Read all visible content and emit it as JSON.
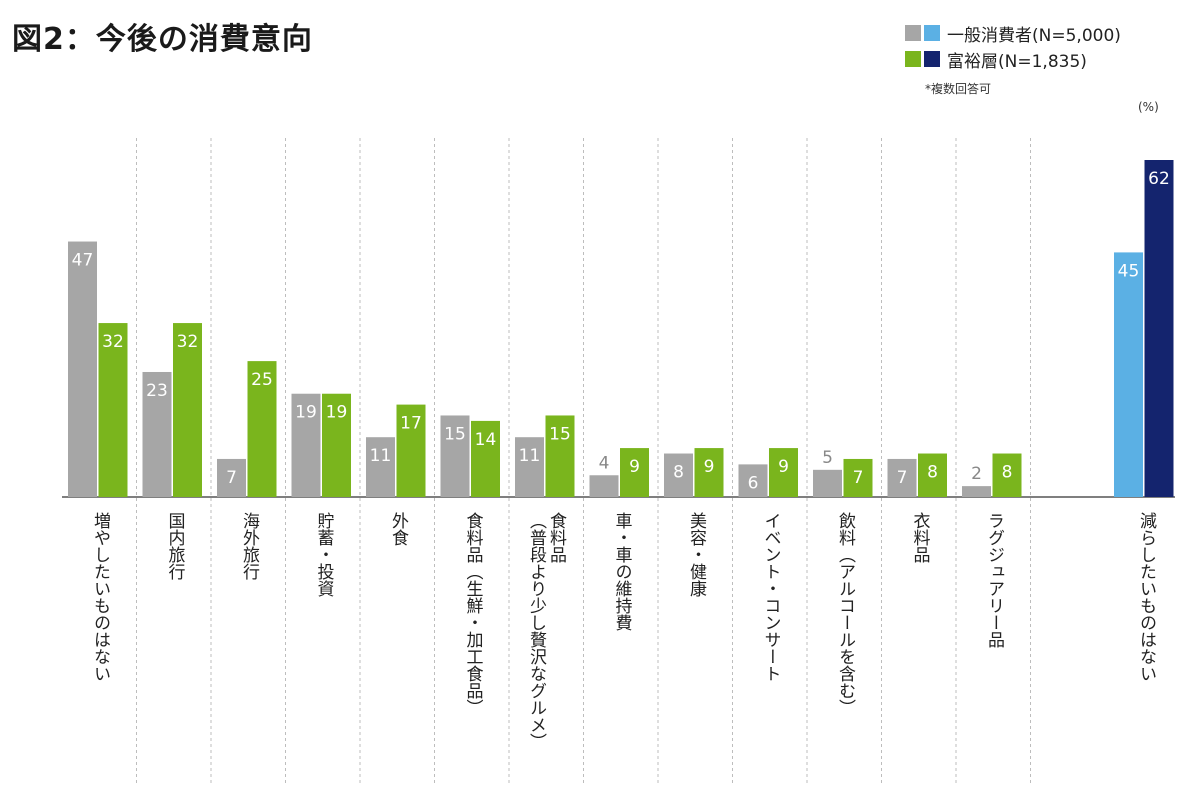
{
  "title": "図2：今後の消費意向",
  "legend": {
    "series1_label": "一般消費者(N=5,000)",
    "series2_label": "富裕層(N=1,835)",
    "note": "*複数回答可",
    "unit": "(%)"
  },
  "colors": {
    "general": "#a6a6a6",
    "wealthy": "#7ab51d",
    "general_last": "#5bb0e4",
    "wealthy_last": "#14246e",
    "label_inside": "#ffffff",
    "label_outside": "#888888",
    "divider": "#bdbdbd",
    "axis": "#333333"
  },
  "chart_data": {
    "type": "bar",
    "title": "図2：今後の消費意向",
    "unit": "(%)",
    "categories": [
      "増やしたいものはない",
      "国内旅行",
      "海外旅行",
      "貯蓄・投資",
      "外食",
      "食料品（生鮮・加工食品）",
      "食料品\n（普段より少し贅沢なグルメ）",
      "車・車の維持費",
      "美容・健康",
      "イベント・コンサート",
      "飲料（アルコールを含む）",
      "衣料品",
      "ラグジュアリー品",
      "",
      "減らしたいものはない"
    ],
    "series": [
      {
        "name": "一般消費者(N=5,000)",
        "values": [
          47,
          23,
          7,
          19,
          11,
          15,
          11,
          4,
          8,
          6,
          5,
          7,
          2,
          null,
          45
        ]
      },
      {
        "name": "富裕層(N=1,835)",
        "values": [
          32,
          32,
          25,
          19,
          17,
          14,
          15,
          9,
          9,
          9,
          7,
          8,
          8,
          null,
          62
        ]
      }
    ],
    "ylim": [
      0,
      62
    ],
    "grid": false,
    "legend_position": "top-right"
  }
}
